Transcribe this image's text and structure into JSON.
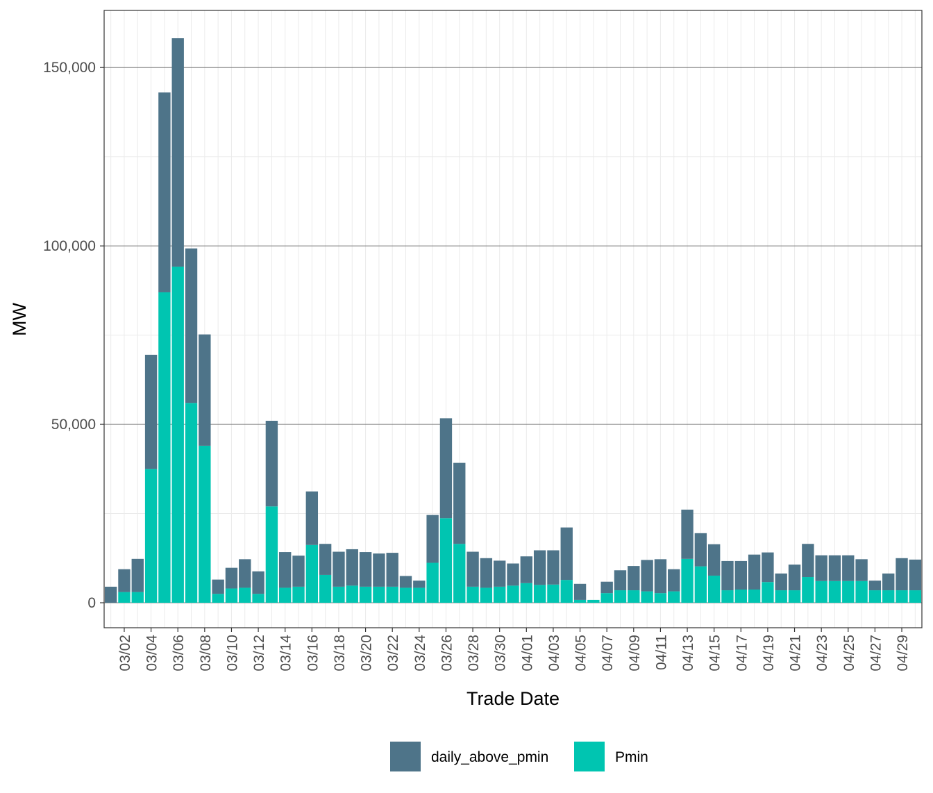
{
  "chart_data": {
    "type": "bar",
    "stacked": true,
    "xlabel": "Trade Date",
    "ylabel": "MW",
    "ylim": [
      -7000,
      166000
    ],
    "yticks": [
      0,
      50000,
      100000,
      150000
    ],
    "ytick_labels": [
      "0",
      "50,000",
      "100,000",
      "150,000"
    ],
    "colors": {
      "daily_above_pmin": "#4E7489",
      "Pmin": "#00C5B1"
    },
    "legend": {
      "position": "bottom",
      "entries": [
        "daily_above_pmin",
        "Pmin"
      ]
    },
    "categories": [
      "03/01",
      "03/02",
      "03/03",
      "03/04",
      "03/05",
      "03/06",
      "03/07",
      "03/08",
      "03/09",
      "03/10",
      "03/11",
      "03/12",
      "03/13",
      "03/14",
      "03/15",
      "03/16",
      "03/17",
      "03/18",
      "03/19",
      "03/20",
      "03/21",
      "03/22",
      "03/23",
      "03/24",
      "03/25",
      "03/26",
      "03/27",
      "03/28",
      "03/29",
      "03/30",
      "03/31",
      "04/01",
      "04/02",
      "04/03",
      "04/04",
      "04/05",
      "04/06",
      "04/07",
      "04/08",
      "04/09",
      "04/10",
      "04/11",
      "04/12",
      "04/13",
      "04/14",
      "04/15",
      "04/16",
      "04/17",
      "04/18",
      "04/19",
      "04/20",
      "04/21",
      "04/22",
      "04/23",
      "04/24",
      "04/25",
      "04/26",
      "04/27",
      "04/28",
      "04/29",
      "04/30"
    ],
    "tick_labels": [
      "03/02",
      "03/04",
      "03/06",
      "03/08",
      "03/10",
      "03/12",
      "03/14",
      "03/16",
      "03/18",
      "03/20",
      "03/22",
      "03/24",
      "03/26",
      "03/28",
      "03/30",
      "04/01",
      "04/03",
      "04/05",
      "04/07",
      "04/09",
      "04/11",
      "04/13",
      "04/15",
      "04/17",
      "04/19",
      "04/21",
      "04/23",
      "04/25",
      "04/27",
      "04/29"
    ],
    "series": [
      {
        "name": "Pmin",
        "values": [
          0,
          3000,
          3000,
          37500,
          87000,
          94200,
          56000,
          44000,
          2500,
          4000,
          4200,
          2500,
          27000,
          4200,
          4500,
          16200,
          7800,
          4500,
          4800,
          4500,
          4500,
          4500,
          4200,
          4200,
          11200,
          23700,
          16500,
          4500,
          4200,
          4500,
          4800,
          5500,
          5000,
          5100,
          6400,
          800,
          800,
          2700,
          3500,
          3500,
          3200,
          2700,
          3200,
          12300,
          10200,
          7600,
          3500,
          3700,
          3700,
          5800,
          3500,
          3500,
          7200,
          6100,
          6100,
          6100,
          6100,
          3500,
          3500,
          3500,
          3500
        ]
      },
      {
        "name": "daily_above_pmin",
        "values": [
          4500,
          6400,
          9300,
          32000,
          56000,
          64000,
          43300,
          31200,
          4000,
          5800,
          8000,
          6300,
          24000,
          10000,
          8700,
          15000,
          8700,
          9800,
          10200,
          9700,
          9300,
          9500,
          3300,
          2000,
          13400,
          28000,
          22700,
          9800,
          8300,
          7300,
          6200,
          7500,
          9700,
          9600,
          14700,
          4500,
          0,
          3200,
          5600,
          6800,
          8800,
          9500,
          6200,
          13800,
          9300,
          8800,
          8200,
          8000,
          9800,
          8300,
          4700,
          7200,
          9300,
          7200,
          7200,
          7200,
          6100,
          2700,
          4700,
          9000,
          8600
        ]
      }
    ]
  }
}
